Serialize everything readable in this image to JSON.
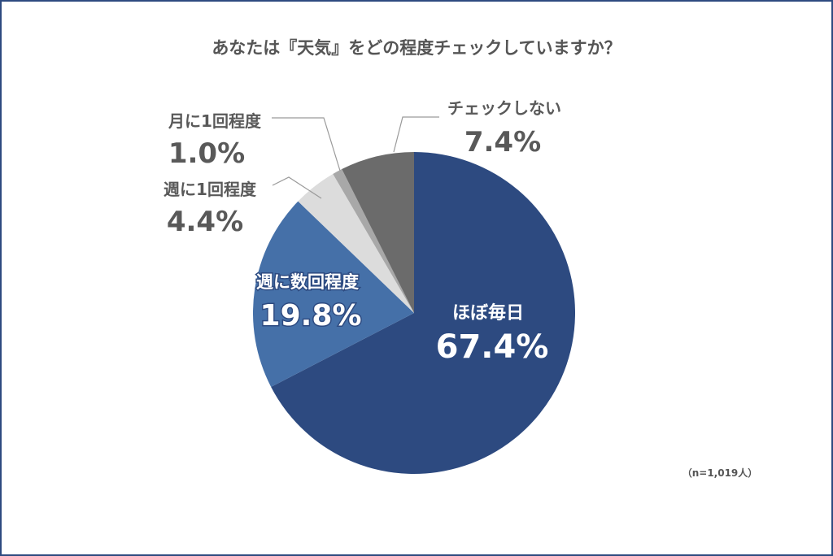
{
  "chart_data": {
    "type": "pie",
    "title": "あなたは『天気』をどの程度チェックしていますか？",
    "note": "（n=1,019人）",
    "start": "top",
    "direction": "clockwise",
    "slices": [
      {
        "label": "ほぼ毎日",
        "value": 67.4,
        "display": "67.4%",
        "color": "#2d4a80"
      },
      {
        "label": "週に数回程度",
        "value": 19.8,
        "display": "19.8%",
        "color": "#4570a8"
      },
      {
        "label": "週に1回程度",
        "value": 4.4,
        "display": "4.4%",
        "color": "#dcdcdc"
      },
      {
        "label": "月に1回程度",
        "value": 1.0,
        "display": "1.0%",
        "color": "#a8a8a8"
      },
      {
        "label": "チェックしない",
        "value": 7.4,
        "display": "7.4%",
        "color": "#6b6b6b"
      }
    ]
  }
}
